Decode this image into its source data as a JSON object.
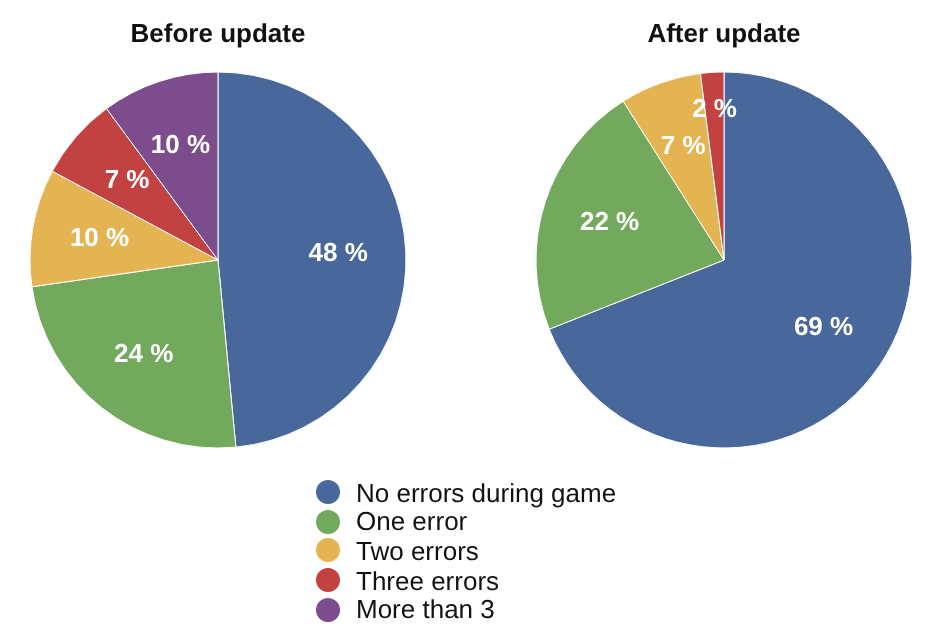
{
  "chart_data": [
    {
      "type": "pie",
      "title": "Before update",
      "categories": [
        "No errors during game",
        "One error",
        "Two errors",
        "Three errors",
        "More than 3"
      ],
      "values": [
        48,
        24,
        10,
        7,
        10
      ],
      "value_labels": [
        "48 %",
        "24 %",
        "10 %",
        "7 %",
        "10 %"
      ],
      "colors": [
        "#48679b",
        "#72a95d",
        "#e5b452",
        "#c24141",
        "#7d4c8c"
      ],
      "legend": "bottom"
    },
    {
      "type": "pie",
      "title": "After update",
      "categories": [
        null,
        null,
        null,
        null
      ],
      "values": [
        69,
        22,
        7,
        2
      ],
      "value_labels": [
        "69 %",
        "22 %",
        "7 %",
        "2 %"
      ],
      "colors": [
        "#48679b",
        "#72a95d",
        "#e5b452",
        "#c24141"
      ]
    }
  ]
}
